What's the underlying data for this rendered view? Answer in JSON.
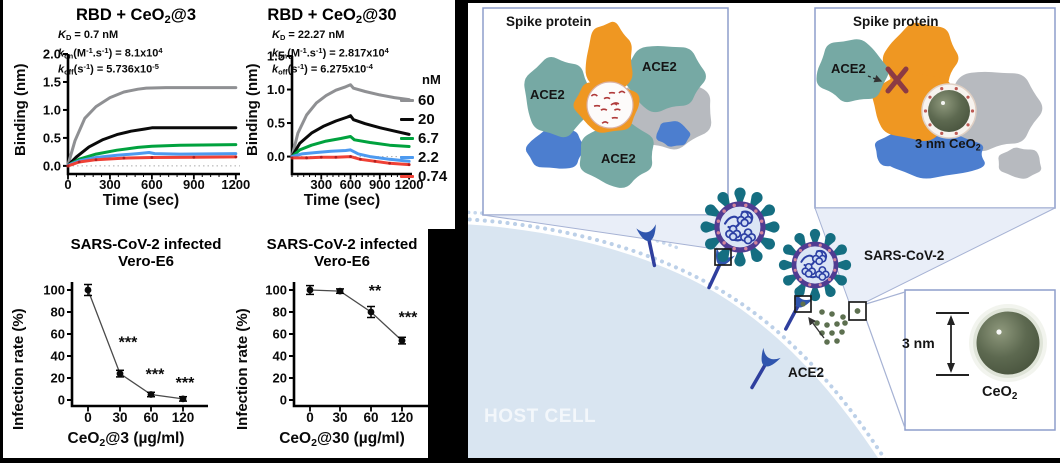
{
  "colors": {
    "series_gray": "#8f9093",
    "series_black": "#0a0a0a",
    "series_green": "#00a23e",
    "series_blue": "#4d9af0",
    "series_red": "#ef4136",
    "teal_protein": "#76a9a4",
    "orange_spike": "#ef9722",
    "blue_protein": "#4c7ecf",
    "gray_protein": "#b7babf",
    "virus_ring": "#503c92",
    "virus_spike": "#156e81",
    "host_fill": "#d9e5f1",
    "callout_border": "#8e9ecb",
    "green_dot": "#5d7050",
    "sphere_dark": "#58644c",
    "x_mark": "#8c3b44"
  },
  "legend": {
    "title": "nM",
    "entries": [
      {
        "label": "60",
        "color": "#8f9093"
      },
      {
        "label": "20",
        "color": "#0a0a0a"
      },
      {
        "label": "6.7",
        "color": "#00a23e"
      },
      {
        "label": "2.2",
        "color": "#4d9af0"
      },
      {
        "label": "0.74",
        "color": "#ef4136"
      }
    ]
  },
  "chart_data": [
    {
      "id": "binding-ceo2-3",
      "type": "line",
      "title": [
        "RBD + CeO",
        [
          "2",
          "sb"
        ],
        "@3"
      ],
      "kinetics": [
        [
          [
            "K",
            "it"
          ],
          [
            "D",
            "sb"
          ],
          " = 0.7 nM"
        ],
        [
          [
            "k",
            "it"
          ],
          [
            "on",
            "sb"
          ],
          "(M",
          [
            "-1",
            "sp"
          ],
          ".s",
          [
            "-1",
            "sp"
          ],
          ") = 8.1x10",
          [
            "4",
            "sp"
          ]
        ],
        [
          [
            "k",
            "it"
          ],
          [
            "off",
            "sb"
          ],
          "(s",
          [
            "-1",
            "sp"
          ],
          ") = 5.736x10",
          [
            "-5",
            "sp"
          ]
        ]
      ],
      "xlabel": "Time (sec)",
      "ylabel": "Binding (nm)",
      "xlim": [
        0,
        1230
      ],
      "ylim": [
        -0.145,
        2.0
      ],
      "xticks": [
        0,
        300,
        600,
        900,
        1200
      ],
      "yticks": [
        0,
        0.5,
        1,
        1.5,
        2
      ],
      "concentration_unit": "nM",
      "series": [
        {
          "name": "60",
          "color": "#8f9093",
          "points": [
            [
              0,
              0.02
            ],
            [
              50,
              0.45
            ],
            [
              120,
              0.85
            ],
            [
              200,
              1.06
            ],
            [
              300,
              1.22
            ],
            [
              400,
              1.32
            ],
            [
              500,
              1.37
            ],
            [
              560,
              1.39
            ],
            [
              700,
              1.4
            ],
            [
              1200,
              1.4
            ]
          ]
        },
        {
          "name": "20",
          "color": "#0a0a0a",
          "points": [
            [
              0,
              0.01
            ],
            [
              60,
              0.16
            ],
            [
              150,
              0.34
            ],
            [
              250,
              0.47
            ],
            [
              350,
              0.56
            ],
            [
              450,
              0.62
            ],
            [
              550,
              0.66
            ],
            [
              600,
              0.68
            ],
            [
              1200,
              0.68
            ]
          ]
        },
        {
          "name": "6.7",
          "color": "#00a23e",
          "points": [
            [
              0,
              0.01
            ],
            [
              80,
              0.12
            ],
            [
              200,
              0.21
            ],
            [
              350,
              0.28
            ],
            [
              500,
              0.33
            ],
            [
              600,
              0.35
            ],
            [
              800,
              0.37
            ],
            [
              1200,
              0.38
            ]
          ]
        },
        {
          "name": "2.2",
          "color": "#4d9af0",
          "points": [
            [
              0,
              0.01
            ],
            [
              80,
              0.09
            ],
            [
              200,
              0.15
            ],
            [
              350,
              0.19
            ],
            [
              500,
              0.22
            ],
            [
              580,
              0.24
            ],
            [
              620,
              0.22
            ],
            [
              800,
              0.21
            ],
            [
              1200,
              0.22
            ]
          ]
        },
        {
          "name": "0.74",
          "color": "#ef4136",
          "markers": true,
          "points": [
            [
              0,
              0
            ],
            [
              80,
              0.07
            ],
            [
              200,
              0.11
            ],
            [
              400,
              0.14
            ],
            [
              600,
              0.15
            ],
            [
              900,
              0.155
            ],
            [
              1200,
              0.16
            ]
          ]
        }
      ]
    },
    {
      "id": "binding-ceo2-30",
      "type": "line",
      "title": [
        "RBD + CeO",
        [
          "2",
          "sb"
        ],
        "@30"
      ],
      "kinetics": [
        [
          [
            "K",
            "it"
          ],
          [
            "D",
            "sb"
          ],
          " = 22.27 nM"
        ],
        [
          [
            "k",
            "it"
          ],
          [
            "on",
            "sb"
          ],
          "(M",
          [
            "-1",
            "sp"
          ],
          ".s",
          [
            "-1",
            "sp"
          ],
          ") = 2.817x10",
          [
            "4",
            "sp"
          ]
        ],
        [
          [
            "k",
            "it"
          ],
          [
            "off",
            "sb"
          ],
          "(s",
          [
            "-1",
            "sp"
          ],
          ") = 6.275x10",
          [
            "-4",
            "sp"
          ]
        ]
      ],
      "xlabel": "Time (sec)",
      "ylabel": "Binding (nm)",
      "xlim": [
        0,
        1230
      ],
      "ylim": [
        -0.26,
        1.5
      ],
      "xticks": [
        300,
        600,
        900,
        1200
      ],
      "yticks": [
        0,
        0.5,
        1,
        1.5
      ],
      "concentration_unit": "nM",
      "series": [
        {
          "name": "60",
          "color": "#8f9093",
          "points": [
            [
              0,
              0
            ],
            [
              60,
              0.35
            ],
            [
              150,
              0.62
            ],
            [
              250,
              0.8
            ],
            [
              350,
              0.91
            ],
            [
              450,
              0.99
            ],
            [
              550,
              1.04
            ],
            [
              600,
              1.07
            ],
            [
              630,
              1.02
            ],
            [
              750,
              0.97
            ],
            [
              900,
              0.92
            ],
            [
              1050,
              0.88
            ],
            [
              1200,
              0.85
            ]
          ]
        },
        {
          "name": "20",
          "color": "#0a0a0a",
          "points": [
            [
              0,
              0
            ],
            [
              80,
              0.2
            ],
            [
              200,
              0.35
            ],
            [
              320,
              0.45
            ],
            [
              450,
              0.53
            ],
            [
              570,
              0.59
            ],
            [
              600,
              0.61
            ],
            [
              630,
              0.55
            ],
            [
              750,
              0.49
            ],
            [
              900,
              0.43
            ],
            [
              1050,
              0.38
            ],
            [
              1200,
              0.33
            ]
          ]
        },
        {
          "name": "6.7",
          "color": "#00a23e",
          "points": [
            [
              0,
              0
            ],
            [
              80,
              0.1
            ],
            [
              200,
              0.17
            ],
            [
              350,
              0.23
            ],
            [
              500,
              0.27
            ],
            [
              600,
              0.3
            ],
            [
              640,
              0.25
            ],
            [
              800,
              0.21
            ],
            [
              1000,
              0.17
            ],
            [
              1200,
              0.15
            ]
          ]
        },
        {
          "name": "2.2",
          "color": "#4d9af0",
          "points": [
            [
              0,
              0
            ],
            [
              100,
              0.04
            ],
            [
              250,
              0.06
            ],
            [
              400,
              0.08
            ],
            [
              550,
              0.09
            ],
            [
              600,
              0.1
            ],
            [
              680,
              0.04
            ],
            [
              800,
              0
            ],
            [
              1000,
              -0.04
            ],
            [
              1200,
              -0.07
            ]
          ]
        },
        {
          "name": "0.74",
          "color": "#ef4136",
          "markers": true,
          "points": [
            [
              0,
              -0.02
            ],
            [
              150,
              -0.02
            ],
            [
              300,
              -0.01
            ],
            [
              450,
              -0.01
            ],
            [
              600,
              0
            ],
            [
              700,
              -0.04
            ],
            [
              850,
              -0.07
            ],
            [
              1000,
              -0.1
            ],
            [
              1200,
              -0.12
            ]
          ]
        }
      ]
    },
    {
      "id": "infection-ceo2-3",
      "type": "scatter-line",
      "title_lines": [
        "SARS-CoV-2 infected",
        "Vero-E6"
      ],
      "xlabel": [
        "CeO",
        [
          "2",
          "sb"
        ],
        "@3 (µg/ml)"
      ],
      "ylabel": "Infection rate (%)",
      "categories": [
        0,
        30,
        60,
        120
      ],
      "values": [
        100,
        24,
        5,
        1
      ],
      "errors": [
        5,
        3,
        2,
        2
      ],
      "significance": [
        "",
        "***",
        "***",
        "***"
      ],
      "ylim": [
        0,
        100
      ],
      "yticks": [
        0,
        20,
        40,
        60,
        80,
        100
      ]
    },
    {
      "id": "infection-ceo2-30",
      "type": "scatter-line",
      "title_lines": [
        "SARS-CoV-2 infected",
        "Vero-E6"
      ],
      "xlabel": [
        "CeO",
        [
          "2",
          "sb"
        ],
        "@30 (µg/ml)"
      ],
      "ylabel": "Infection rate (%)",
      "categories": [
        0,
        30,
        60,
        120
      ],
      "values": [
        100,
        99,
        80,
        54
      ],
      "errors": [
        4,
        2,
        5,
        3
      ],
      "significance": [
        "",
        "",
        "**",
        "***"
      ],
      "ylim": [
        0,
        100
      ],
      "yticks": [
        0,
        20,
        40,
        60,
        80,
        100
      ]
    }
  ],
  "diagram": {
    "inset_trimer": {
      "spike_protein": "Spike protein",
      "ace2_left": "ACE2",
      "ace2_right": "ACE2",
      "ace2_bottom": "ACE2"
    },
    "inset_blocked": {
      "spike_protein": "Spike protein",
      "ace2": "ACE2",
      "ceo2_label": [
        "3 nm CeO",
        [
          "2",
          "sb"
        ]
      ]
    },
    "inset_particle": {
      "size_label": "3 nm",
      "ceo2_label": [
        "CeO",
        [
          "2",
          "sb"
        ]
      ]
    },
    "scene": {
      "virus_label": "SARS-CoV-2",
      "receptor_label": "ACE2",
      "host_cell_label": "HOST CELL"
    }
  }
}
